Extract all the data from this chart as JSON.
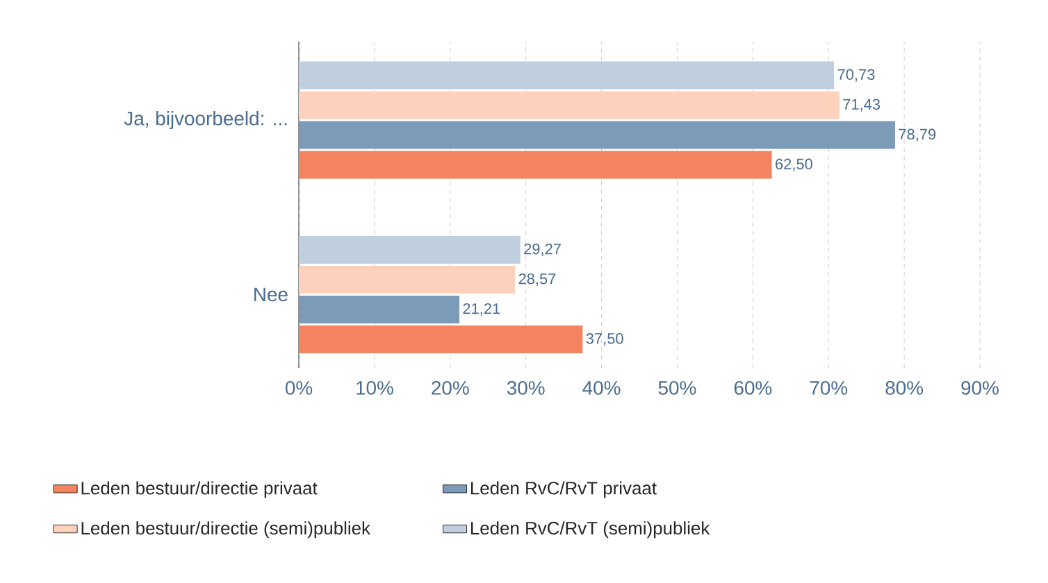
{
  "chart_data": {
    "type": "bar",
    "orientation": "horizontal",
    "categories": [
      "Ja, bijvoorbeeld: ...",
      "Nee"
    ],
    "series": [
      {
        "name": "Leden bestuur/directie privaat",
        "color": "#f4845f",
        "values": [
          62.5,
          37.5
        ],
        "value_labels": [
          "62,50",
          "37,50"
        ]
      },
      {
        "name": "Leden RvC/RvT privaat",
        "color": "#7b9bb8",
        "values": [
          78.79,
          21.21
        ],
        "value_labels": [
          "78,79",
          "21,21"
        ]
      },
      {
        "name": "Leden bestuur/directie (semi)publiek",
        "color": "#fdd1bb",
        "values": [
          71.43,
          28.57
        ],
        "value_labels": [
          "71,43",
          "28,57"
        ]
      },
      {
        "name": "Leden RvC/RvT (semi)publiek",
        "color": "#bfcfe0",
        "values": [
          70.73,
          29.27
        ],
        "value_labels": [
          "70,73",
          "29,27"
        ]
      }
    ],
    "xlim": [
      0,
      90
    ],
    "xticks": [
      {
        "value": 0,
        "label": "0%"
      },
      {
        "value": 10,
        "label": "10%"
      },
      {
        "value": 20,
        "label": "20%"
      },
      {
        "value": 30,
        "label": "30%"
      },
      {
        "value": 40,
        "label": "40%"
      },
      {
        "value": 50,
        "label": "50%"
      },
      {
        "value": 60,
        "label": "60%"
      },
      {
        "value": 70,
        "label": "70%"
      },
      {
        "value": 80,
        "label": "80%"
      },
      {
        "value": 90,
        "label": "90%"
      }
    ],
    "grid": "x",
    "legend": "bottom"
  }
}
